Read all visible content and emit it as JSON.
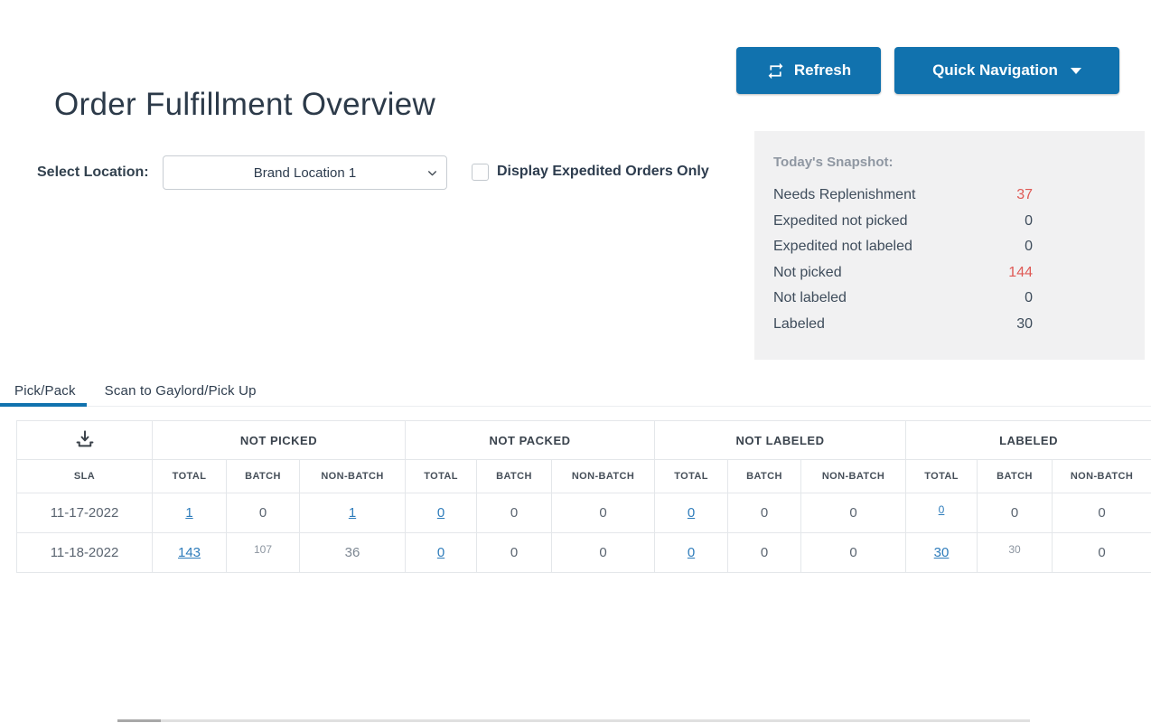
{
  "header": {
    "title": "Order Fulfillment Overview",
    "refresh_label": "Refresh",
    "quick_nav_label": "Quick Navigation"
  },
  "filters": {
    "location_label": "Select Location:",
    "location_value": "Brand Location 1",
    "expedited_checkbox_label": "Display Expedited Orders Only",
    "expedited_checked": false
  },
  "snapshot": {
    "title": "Today's Snapshot:",
    "rows": [
      {
        "label": "Needs Replenishment",
        "value": "37",
        "alert": true
      },
      {
        "label": "Expedited not picked",
        "value": "0",
        "alert": false
      },
      {
        "label": "Expedited not labeled",
        "value": "0",
        "alert": false
      },
      {
        "label": "Not picked",
        "value": "144",
        "alert": true
      },
      {
        "label": "Not labeled",
        "value": "0",
        "alert": false
      },
      {
        "label": "Labeled",
        "value": "30",
        "alert": false
      }
    ]
  },
  "tabs": [
    {
      "label": "Pick/Pack",
      "active": true
    },
    {
      "label": "Scan to Gaylord/Pick Up",
      "active": false
    }
  ],
  "table": {
    "corner_icon": "download-icon",
    "sla_header": "SLA",
    "group_headers": [
      "NOT PICKED",
      "NOT PACKED",
      "NOT LABELED",
      "LABELED"
    ],
    "sub_headers": [
      "TOTAL",
      "BATCH",
      "NON-BATCH"
    ],
    "rows": [
      {
        "sla": "11-17-2022",
        "cells": [
          {
            "text": "1",
            "link": true
          },
          {
            "text": "0"
          },
          {
            "text": "1",
            "link": true
          },
          {
            "text": "0",
            "link": true
          },
          {
            "text": "0"
          },
          {
            "text": "0"
          },
          {
            "text": "0",
            "link": true
          },
          {
            "text": "0"
          },
          {
            "text": "0"
          },
          {
            "text": "0",
            "link": true,
            "small": true
          },
          {
            "text": "0"
          },
          {
            "text": "0"
          }
        ]
      },
      {
        "sla": "11-18-2022",
        "cells": [
          {
            "text": "143",
            "link": true
          },
          {
            "text": "107",
            "small": true
          },
          {
            "text": "36",
            "muted": true
          },
          {
            "text": "0",
            "link": true
          },
          {
            "text": "0"
          },
          {
            "text": "0"
          },
          {
            "text": "0",
            "link": true
          },
          {
            "text": "0"
          },
          {
            "text": "0"
          },
          {
            "text": "30",
            "link": true
          },
          {
            "text": "30",
            "small": true
          },
          {
            "text": "0"
          }
        ]
      }
    ]
  },
  "colors": {
    "accent_blue": "#1172ae",
    "link_blue": "#2e7cbb",
    "alert_red": "#df5955",
    "panel_bg": "#f1f1f2"
  }
}
